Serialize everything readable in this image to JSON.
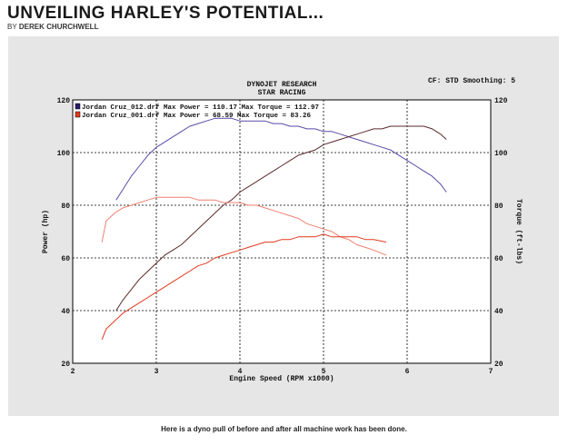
{
  "article": {
    "headline": "UNVEILING HARLEY'S POTENTIAL...",
    "byline_prefix": "BY",
    "byline_author": "DEREK CHURCHWELL",
    "caption": "Here is a dyno pull of before and after all machine work has been done."
  },
  "chart_data": {
    "type": "line",
    "title": "DYNOJET RESEARCH",
    "subtitle": "STAR RACING",
    "settings_text": "CF: STD  Smoothing: 5",
    "xlabel": "Engine Speed (RPM x1000)",
    "ylabel_left": "Power (hp)",
    "ylabel_right": "Torque (ft-lbs)",
    "xlim": [
      2,
      7
    ],
    "ylim": [
      20,
      120
    ],
    "x_ticks": [
      "2",
      "3",
      "4",
      "5",
      "6",
      "7"
    ],
    "y_ticks": [
      "20",
      "40",
      "60",
      "80",
      "100",
      "120"
    ],
    "grid": true,
    "legend": [
      {
        "text": "Jordan Cruz_012.drf Max Power = 110.17   Max Torque = 112.97",
        "color": "#2a1a6e"
      },
      {
        "text": "Jordan Cruz_001.drf Max Power = 68.59   Max Torque = 83.26",
        "color": "#e03a1e"
      }
    ],
    "series": [
      {
        "color": "#5a4aa8",
        "x": [
          2.52,
          2.6,
          2.7,
          2.8,
          2.9,
          3.0,
          3.1,
          3.2,
          3.3,
          3.4,
          3.5,
          3.6,
          3.7,
          3.8,
          3.9,
          4.0,
          4.1,
          4.2,
          4.3,
          4.4,
          4.5,
          4.6,
          4.7,
          4.8,
          4.9,
          5.0,
          5.1,
          5.2,
          5.3,
          5.4,
          5.5,
          5.6,
          5.7,
          5.8,
          5.9,
          6.0,
          6.1,
          6.2,
          6.3,
          6.4,
          6.47
        ],
        "values": [
          82,
          86,
          91,
          95,
          99,
          102,
          104,
          106,
          108,
          110,
          111,
          112,
          113,
          113,
          113,
          112,
          112,
          112,
          112,
          111,
          111,
          110,
          110,
          109,
          109,
          108,
          108,
          107,
          106,
          105,
          104,
          103,
          102,
          101,
          99,
          97,
          95,
          93,
          91,
          88,
          85
        ]
      },
      {
        "color": "#5a2a2a",
        "x": [
          2.52,
          2.6,
          2.7,
          2.8,
          2.9,
          3.0,
          3.1,
          3.2,
          3.3,
          3.4,
          3.5,
          3.6,
          3.7,
          3.8,
          3.9,
          4.0,
          4.1,
          4.2,
          4.3,
          4.4,
          4.5,
          4.6,
          4.7,
          4.8,
          4.9,
          5.0,
          5.1,
          5.2,
          5.3,
          5.4,
          5.5,
          5.6,
          5.7,
          5.8,
          5.9,
          6.0,
          6.1,
          6.2,
          6.3,
          6.4,
          6.47
        ],
        "values": [
          40,
          44,
          48,
          52,
          55,
          58,
          61,
          63,
          65,
          68,
          71,
          74,
          77,
          80,
          82,
          85,
          87,
          89,
          91,
          93,
          95,
          97,
          99,
          100,
          101,
          103,
          104,
          105,
          106,
          107,
          108,
          109,
          109,
          110,
          110,
          110,
          110,
          110,
          109,
          107,
          105
        ]
      },
      {
        "color": "#f08070",
        "x": [
          2.35,
          2.4,
          2.5,
          2.6,
          2.7,
          2.8,
          2.9,
          3.0,
          3.1,
          3.2,
          3.3,
          3.4,
          3.5,
          3.6,
          3.7,
          3.8,
          3.9,
          4.0,
          4.1,
          4.2,
          4.3,
          4.4,
          4.5,
          4.6,
          4.7,
          4.8,
          4.9,
          5.0,
          5.1,
          5.2,
          5.3,
          5.4,
          5.5,
          5.6,
          5.75
        ],
        "values": [
          66,
          74,
          77,
          79,
          80,
          81,
          82,
          83,
          83,
          83,
          83,
          83,
          82,
          82,
          82,
          81,
          81,
          81,
          80,
          80,
          79,
          78,
          77,
          76,
          75,
          73,
          72,
          71,
          70,
          68,
          67,
          65,
          64,
          63,
          61
        ]
      },
      {
        "color": "#e03a1e",
        "x": [
          2.35,
          2.4,
          2.5,
          2.6,
          2.7,
          2.8,
          2.9,
          3.0,
          3.1,
          3.2,
          3.3,
          3.4,
          3.5,
          3.6,
          3.7,
          3.8,
          3.9,
          4.0,
          4.1,
          4.2,
          4.3,
          4.4,
          4.5,
          4.6,
          4.7,
          4.8,
          4.9,
          5.0,
          5.1,
          5.2,
          5.3,
          5.4,
          5.5,
          5.6,
          5.75
        ],
        "values": [
          29,
          33,
          36,
          39,
          41,
          43,
          45,
          47,
          49,
          51,
          53,
          55,
          57,
          58,
          60,
          61,
          62,
          63,
          64,
          65,
          66,
          66,
          67,
          67,
          68,
          68,
          68,
          69,
          68,
          68,
          68,
          68,
          67,
          67,
          66
        ]
      }
    ]
  }
}
